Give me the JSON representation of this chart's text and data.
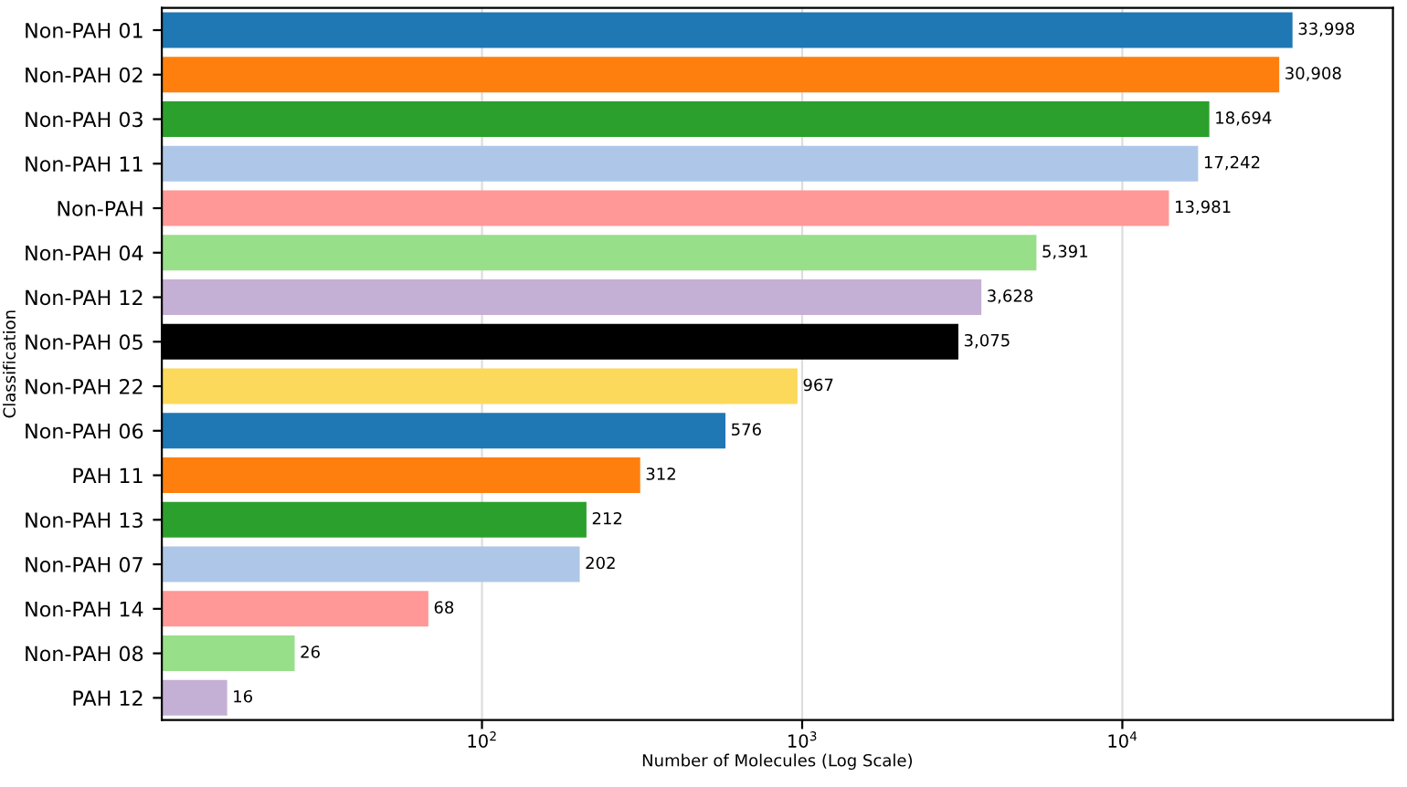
{
  "chart_data": {
    "type": "bar",
    "orientation": "horizontal",
    "log": "x",
    "xlabel": "Number of Molecules (Log Scale)",
    "ylabel": "Classification",
    "categories": [
      "Non-PAH 01",
      "Non-PAH 02",
      "Non-PAH 03",
      "Non-PAH 11",
      "Non-PAH",
      "Non-PAH 04",
      "Non-PAH 12",
      "Non-PAH 05",
      "Non-PAH 22",
      "Non-PAH 06",
      "PAH 11",
      "Non-PAH 13",
      "Non-PAH 07",
      "Non-PAH 14",
      "Non-PAH 08",
      "PAH 12"
    ],
    "values": [
      33998,
      30908,
      18694,
      17242,
      13981,
      5391,
      3628,
      3075,
      967,
      576,
      312,
      212,
      202,
      68,
      26,
      16
    ],
    "value_labels": [
      "33,998",
      "30,908",
      "18,694",
      "17,242",
      "13,981",
      "5,391",
      "3,628",
      "3,075",
      "967",
      "576",
      "312",
      "212",
      "202",
      "68",
      "26",
      "16"
    ],
    "colors": [
      "#1f77b4",
      "#ff7f0e",
      "#2ca02c",
      "#aec7e8",
      "#ff9896",
      "#98df8a",
      "#c5b0d5",
      "#000000",
      "#fcd95a",
      "#1f77b4",
      "#ff7f0e",
      "#2ca02c",
      "#aec7e8",
      "#ff9896",
      "#98df8a",
      "#c5b0d5"
    ],
    "xlim": [
      10,
      70000
    ],
    "xticks": [
      {
        "value": 100,
        "label": "10$^{2}$"
      },
      {
        "value": 1000,
        "label": "10$^{3}$"
      },
      {
        "value": 10000,
        "label": "10$^{4}$"
      }
    ],
    "grid": "x"
  }
}
